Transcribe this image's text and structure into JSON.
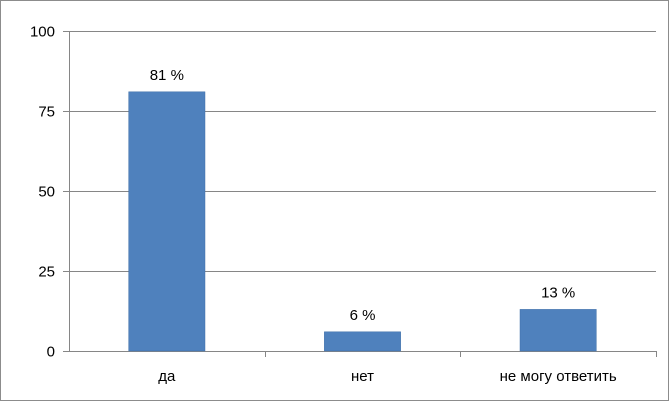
{
  "chart_data": {
    "type": "bar",
    "categories": [
      "да",
      "нет",
      "не могу ответить"
    ],
    "values": [
      81,
      6,
      13
    ],
    "data_labels": [
      "81 %",
      "6 %",
      "13 %"
    ],
    "y_ticks": [
      0,
      25,
      50,
      75,
      100
    ],
    "ylim": [
      0,
      100
    ],
    "grid": true,
    "legend": "none",
    "colors": {
      "bar": "#4f81bd",
      "bar_edge": "#3f6fa8",
      "grid": "#868686",
      "axis": "#868686"
    }
  }
}
